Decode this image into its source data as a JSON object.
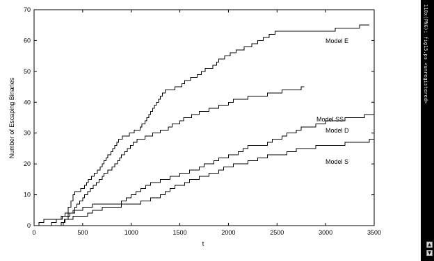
{
  "chart_data": {
    "type": "line",
    "title": "",
    "xlabel": "t",
    "ylabel": "Number of Escaping Binaries",
    "xlim": [
      0,
      3500
    ],
    "ylim": [
      0,
      70
    ],
    "xticks": [
      0,
      500,
      1000,
      1500,
      2000,
      2500,
      3000,
      3500
    ],
    "yticks": [
      0,
      10,
      20,
      30,
      40,
      50,
      60,
      70
    ],
    "grid": false,
    "step": true,
    "series": [
      {
        "name": "Model E",
        "x": [
          0,
          50,
          100,
          200,
          280,
          320,
          350,
          380,
          400,
          420,
          450,
          480,
          500,
          520,
          540,
          560,
          590,
          620,
          650,
          680,
          700,
          720,
          740,
          760,
          790,
          810,
          830,
          850,
          870,
          890,
          910,
          950,
          980,
          1000,
          1030,
          1060,
          1090,
          1110,
          1140,
          1160,
          1180,
          1200,
          1220,
          1240,
          1260,
          1280,
          1300,
          1320,
          1350,
          1400,
          1450,
          1480,
          1520,
          1550,
          1580,
          1610,
          1640,
          1680,
          1720,
          1760,
          1800,
          1840,
          1880,
          1900,
          1930,
          1960,
          2000,
          2020,
          2040,
          2080,
          2120,
          2160,
          2200,
          2240,
          2280,
          2300,
          2330,
          2360,
          2400,
          2420,
          2440,
          2480,
          2520,
          2560,
          2600,
          2650,
          2700,
          2750,
          2800,
          2900,
          3000,
          3100,
          3200,
          3300,
          3350,
          3400,
          3450
        ],
        "y": [
          0,
          1,
          2,
          2,
          3,
          4,
          6,
          8,
          10,
          11,
          11,
          12,
          12,
          13,
          14,
          15,
          16,
          17,
          18,
          19,
          20,
          21,
          22,
          23,
          24,
          25,
          26,
          27,
          28,
          28,
          29,
          29,
          30,
          30,
          31,
          31,
          32,
          33,
          34,
          35,
          36,
          37,
          38,
          39,
          40,
          41,
          42,
          43,
          44,
          44,
          45,
          45,
          46,
          47,
          47,
          48,
          48,
          49,
          50,
          51,
          51,
          52,
          53,
          54,
          54,
          55,
          55,
          56,
          56,
          57,
          57,
          58,
          58,
          59,
          59,
          60,
          60,
          61,
          61,
          62,
          62,
          63,
          63,
          63,
          63,
          63,
          63,
          63,
          63,
          63,
          63,
          64,
          64,
          64,
          65,
          65,
          65
        ]
      },
      {
        "name": "Model SS",
        "x": [
          0,
          250,
          300,
          320,
          350,
          370,
          400,
          420,
          440,
          470,
          500,
          520,
          550,
          580,
          610,
          640,
          670,
          700,
          720,
          760,
          800,
          830,
          860,
          880,
          900,
          930,
          960,
          990,
          1020,
          1060,
          1100,
          1140,
          1180,
          1220,
          1260,
          1300,
          1340,
          1380,
          1420,
          1460,
          1500,
          1540,
          1580,
          1620,
          1660,
          1700,
          1750,
          1800,
          1850,
          1900,
          1950,
          2000,
          2050,
          2100,
          2200,
          2300,
          2400,
          2500,
          2550,
          2600,
          2650,
          2700,
          2750,
          2780
        ],
        "y": [
          0,
          0,
          1,
          2,
          3,
          4,
          5,
          6,
          7,
          8,
          9,
          10,
          11,
          12,
          13,
          14,
          15,
          16,
          17,
          18,
          19,
          20,
          21,
          22,
          23,
          24,
          25,
          26,
          27,
          28,
          28,
          29,
          29,
          30,
          30,
          31,
          31,
          32,
          33,
          33,
          34,
          35,
          35,
          36,
          36,
          37,
          37,
          38,
          38,
          39,
          39,
          40,
          41,
          41,
          42,
          42,
          43,
          43,
          44,
          44,
          44,
          44,
          45,
          45
        ]
      },
      {
        "name": "Model D",
        "x": [
          0,
          180,
          200,
          230,
          260,
          290,
          320,
          350,
          380,
          420,
          460,
          500,
          550,
          600,
          700,
          800,
          900,
          950,
          1000,
          1050,
          1100,
          1150,
          1200,
          1250,
          1300,
          1350,
          1400,
          1450,
          1500,
          1550,
          1600,
          1650,
          1700,
          1750,
          1800,
          1850,
          1900,
          1950,
          2000,
          2100,
          2150,
          2200,
          2300,
          2400,
          2450,
          2500,
          2550,
          2600,
          2650,
          2700,
          2750,
          2800,
          2900,
          3000,
          3100,
          3200,
          3300,
          3350,
          3400,
          3450,
          3500
        ],
        "y": [
          0,
          1,
          1,
          2,
          2,
          3,
          3,
          4,
          4,
          5,
          5,
          6,
          6,
          7,
          7,
          7,
          8,
          9,
          10,
          11,
          12,
          13,
          14,
          14,
          15,
          15,
          16,
          16,
          17,
          17,
          18,
          18,
          19,
          20,
          20,
          21,
          22,
          22,
          23,
          24,
          25,
          26,
          26,
          27,
          28,
          28,
          29,
          30,
          30,
          31,
          32,
          32,
          33,
          34,
          34,
          35,
          35,
          35,
          36,
          36,
          36
        ]
      },
      {
        "name": "Model S",
        "x": [
          0,
          190,
          280,
          310,
          350,
          400,
          480,
          550,
          600,
          700,
          800,
          900,
          1000,
          1080,
          1100,
          1150,
          1200,
          1250,
          1300,
          1350,
          1400,
          1450,
          1500,
          1550,
          1600,
          1650,
          1700,
          1750,
          1800,
          1850,
          1900,
          1950,
          2000,
          2050,
          2100,
          2150,
          2200,
          2250,
          2300,
          2350,
          2400,
          2450,
          2500,
          2600,
          2650,
          2700,
          2800,
          2900,
          3000,
          3100,
          3200,
          3300,
          3400,
          3450,
          3500
        ],
        "y": [
          0,
          0,
          1,
          2,
          2,
          3,
          3,
          4,
          5,
          6,
          6,
          7,
          7,
          7,
          8,
          8,
          9,
          9,
          10,
          11,
          12,
          13,
          13,
          14,
          15,
          15,
          16,
          16,
          17,
          17,
          18,
          19,
          19,
          20,
          20,
          20,
          21,
          21,
          22,
          22,
          23,
          23,
          23,
          24,
          24,
          25,
          25,
          26,
          26,
          26,
          27,
          27,
          27,
          28,
          28
        ]
      }
    ]
  },
  "sidebar": {
    "caption": "110x(PNG): fig15.ps <unregistered>",
    "btn_up": "▲",
    "btn_down": "▼"
  }
}
